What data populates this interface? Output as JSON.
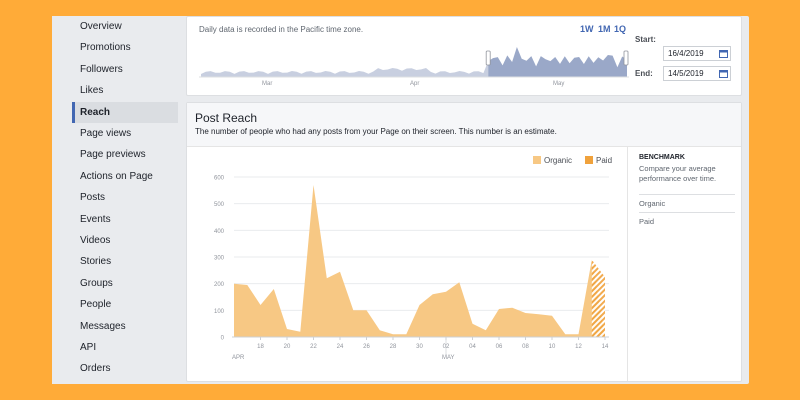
{
  "sidebar": {
    "items": [
      {
        "label": "Overview"
      },
      {
        "label": "Promotions"
      },
      {
        "label": "Followers"
      },
      {
        "label": "Likes"
      },
      {
        "label": "Reach",
        "active": true
      },
      {
        "label": "Page views"
      },
      {
        "label": "Page previews"
      },
      {
        "label": "Actions on Page"
      },
      {
        "label": "Posts"
      },
      {
        "label": "Events"
      },
      {
        "label": "Videos"
      },
      {
        "label": "Stories"
      },
      {
        "label": "Groups"
      },
      {
        "label": "People"
      },
      {
        "label": "Messages"
      },
      {
        "label": "API"
      },
      {
        "label": "Orders"
      }
    ]
  },
  "date_range": {
    "timezone_note": "Daily data is recorded in the Pacific time zone.",
    "buttons": [
      "1W",
      "1M",
      "1Q"
    ],
    "start_label": "Start:",
    "start_value": "16/4/2019",
    "end_label": "End:",
    "end_value": "14/5/2019",
    "mini_months": [
      "Mar",
      "Apr",
      "May"
    ]
  },
  "post_reach": {
    "title": "Post Reach",
    "subtitle": "The number of people who had any posts from your Page on their screen. This number is an estimate.",
    "legend": [
      {
        "name": "Organic",
        "color": "#f7c884"
      },
      {
        "name": "Paid",
        "color": "#f0a23c"
      }
    ]
  },
  "benchmark": {
    "title": "BENCHMARK",
    "description": "Compare your average performance over time.",
    "rows": [
      "Organic",
      "Paid"
    ]
  },
  "chart_data": {
    "type": "area",
    "y_ticks": [
      0,
      100,
      200,
      300,
      400,
      500,
      600
    ],
    "ylim": [
      0,
      600
    ],
    "x_tick_labels": [
      "18",
      "20",
      "22",
      "24",
      "26",
      "28",
      "30",
      "02",
      "04",
      "06",
      "08",
      "10",
      "12",
      "14"
    ],
    "month_labels": [
      "APR",
      "MAY"
    ],
    "x": [
      "16/4",
      "17/4",
      "18/4",
      "19/4",
      "20/4",
      "21/4",
      "22/4",
      "23/4",
      "24/4",
      "25/4",
      "26/4",
      "27/4",
      "28/4",
      "29/4",
      "30/4",
      "1/5",
      "2/5",
      "3/5",
      "4/5",
      "5/5",
      "6/5",
      "7/5",
      "8/5",
      "9/5",
      "10/5",
      "11/5",
      "12/5",
      "13/5",
      "14/5"
    ],
    "series": [
      {
        "name": "Organic",
        "color": "#f7c884",
        "values": [
          200,
          195,
          120,
          180,
          30,
          20,
          570,
          220,
          245,
          100,
          100,
          25,
          10,
          10,
          120,
          160,
          170,
          205,
          50,
          25,
          105,
          110,
          90,
          85,
          80,
          10,
          10,
          290,
          0
        ]
      },
      {
        "name": "Paid",
        "color": "#f0a23c",
        "pattern": "hatched",
        "values": [
          0,
          0,
          0,
          0,
          0,
          0,
          0,
          0,
          0,
          0,
          0,
          0,
          0,
          0,
          0,
          0,
          0,
          0,
          0,
          0,
          0,
          0,
          0,
          0,
          0,
          0,
          0,
          0,
          225
        ]
      }
    ],
    "grid": true,
    "legend_position": "top-right"
  },
  "colors": {
    "background": "#ffab38",
    "accent": "#4267b2",
    "organic": "#f7c884",
    "paid": "#f0a23c",
    "mini_area": "#c8cfe0",
    "mini_area_selected": "#9aa8c8"
  }
}
